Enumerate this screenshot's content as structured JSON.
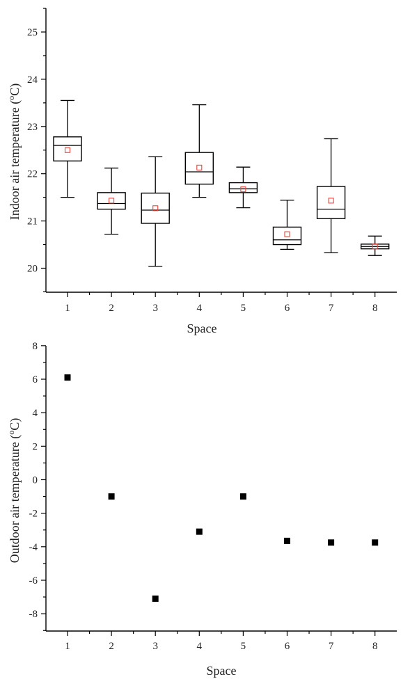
{
  "chart_data": [
    {
      "type": "box",
      "xlabel": "Space",
      "ylabel": "Indoor air temperature (°C)",
      "ylabel_parts": {
        "pre": "Indoor air temperature (",
        "sup": "o",
        "post": "C)"
      },
      "categories": [
        "1",
        "2",
        "3",
        "4",
        "5",
        "6",
        "7",
        "8"
      ],
      "ylim": [
        19.5,
        25.5
      ],
      "yticks": [
        "20",
        "21",
        "22",
        "23",
        "24",
        "25"
      ],
      "boxes": [
        {
          "min": 21.5,
          "q1": 22.27,
          "median": 22.6,
          "q3": 22.78,
          "max": 23.55,
          "mean": 22.5
        },
        {
          "min": 20.72,
          "q1": 21.25,
          "median": 21.37,
          "q3": 21.6,
          "max": 22.12,
          "mean": 21.43
        },
        {
          "min": 20.04,
          "q1": 20.95,
          "median": 21.23,
          "q3": 21.59,
          "max": 22.36,
          "mean": 21.27
        },
        {
          "min": 21.5,
          "q1": 21.78,
          "median": 22.04,
          "q3": 22.45,
          "max": 23.46,
          "mean": 22.13
        },
        {
          "min": 21.28,
          "q1": 21.6,
          "median": 21.68,
          "q3": 21.81,
          "max": 22.14,
          "mean": 21.67
        },
        {
          "min": 20.4,
          "q1": 20.5,
          "median": 20.6,
          "q3": 20.87,
          "max": 21.44,
          "mean": 20.72
        },
        {
          "min": 20.33,
          "q1": 21.05,
          "median": 21.25,
          "q3": 21.73,
          "max": 22.74,
          "mean": 21.43
        },
        {
          "min": 20.27,
          "q1": 20.41,
          "median": 20.46,
          "q3": 20.51,
          "max": 20.68,
          "mean": 20.46
        }
      ]
    },
    {
      "type": "scatter",
      "xlabel": "Space",
      "ylabel": "Outdoor air temperature (°C)",
      "ylabel_parts": {
        "pre": "Outdoor air temperature (",
        "sup": "o",
        "post": "C)"
      },
      "categories": [
        "1",
        "2",
        "3",
        "4",
        "5",
        "6",
        "7",
        "8"
      ],
      "values": [
        6.1,
        -1.0,
        -7.1,
        -3.1,
        -1.0,
        -3.65,
        -3.75,
        -3.75
      ],
      "ylim": [
        -9.0,
        8.0
      ],
      "yticks": [
        "-8",
        "-6",
        "-4",
        "-2",
        "0",
        "2",
        "4",
        "6",
        "8"
      ]
    }
  ]
}
